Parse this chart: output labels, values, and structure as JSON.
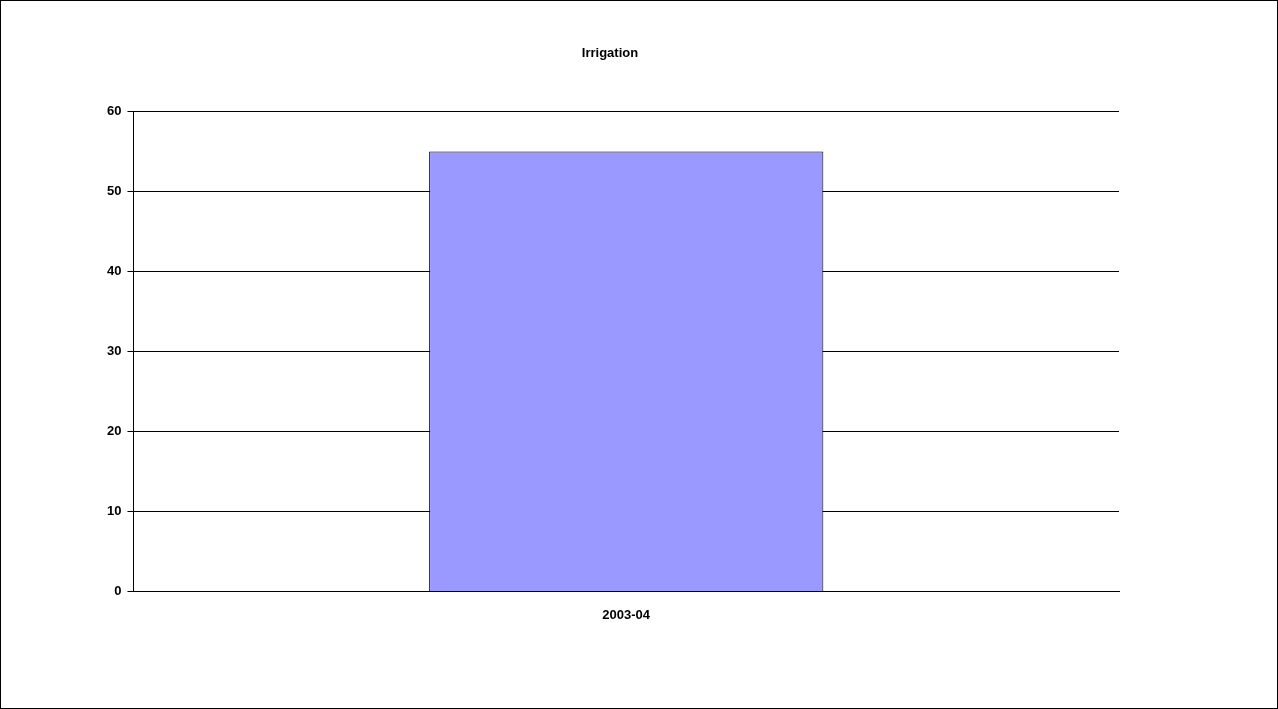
{
  "chart_data": {
    "type": "bar",
    "title": "Irrigation",
    "categories": [
      "2003-04"
    ],
    "values": [
      55
    ],
    "color": "#9999ff",
    "ylim": [
      0,
      60
    ],
    "yticks": [
      0,
      10,
      20,
      30,
      40,
      50,
      60
    ],
    "grid": "y"
  }
}
